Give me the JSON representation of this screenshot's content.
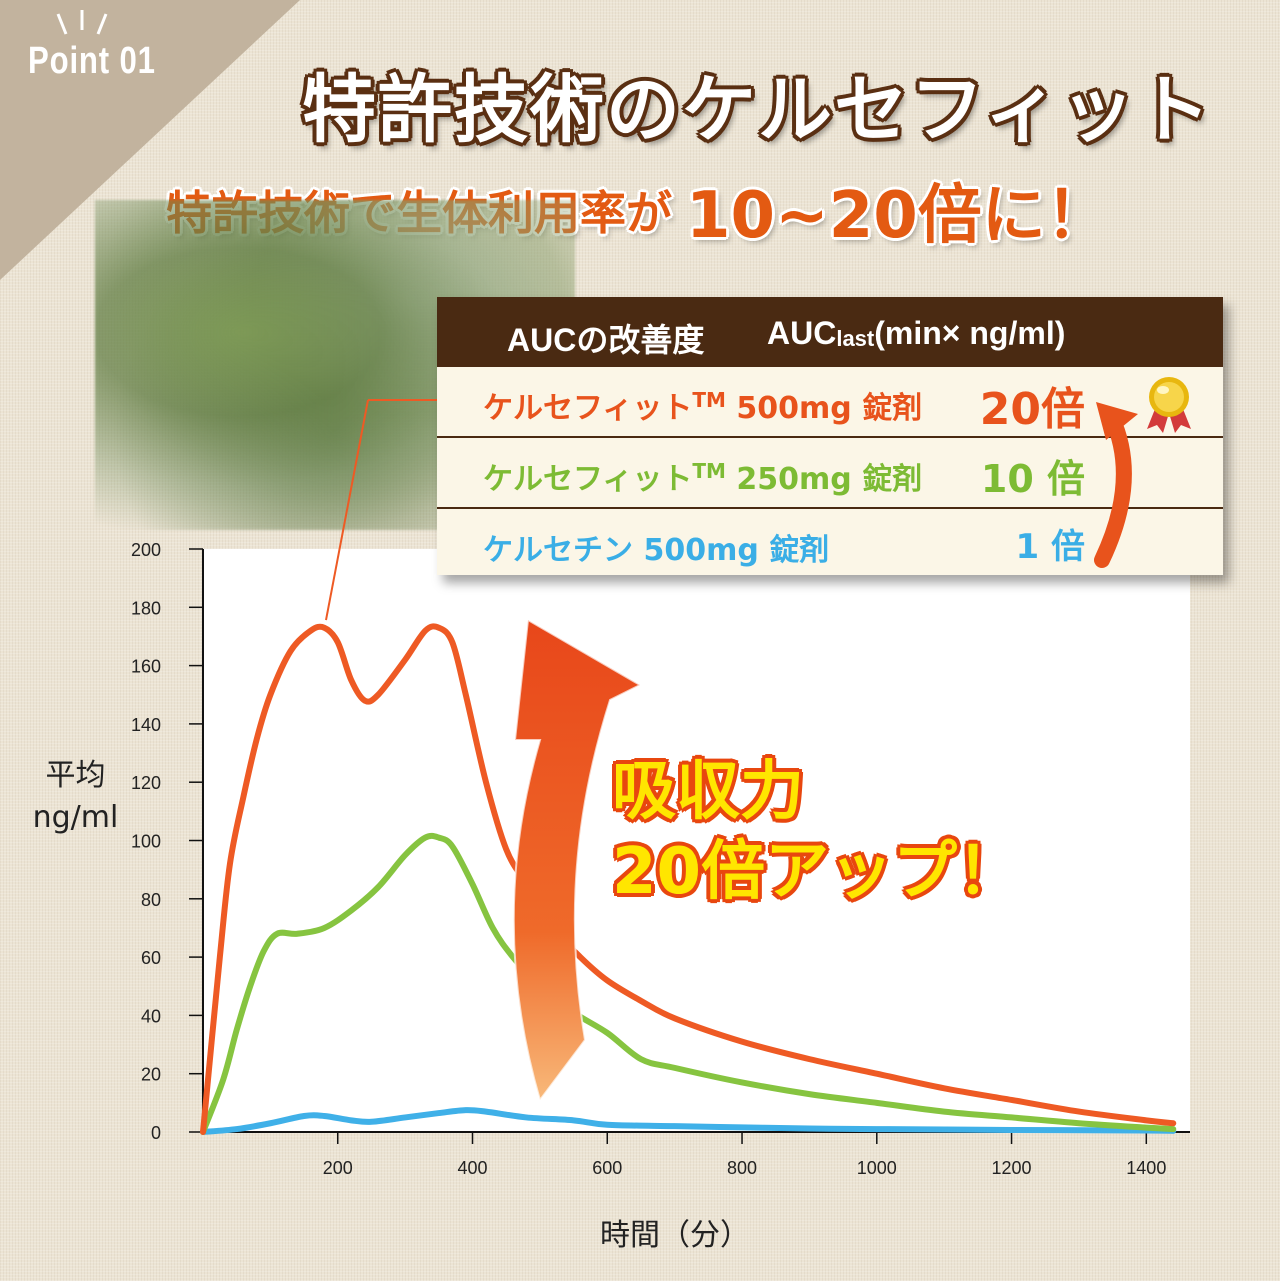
{
  "badge": {
    "point_label": "Point 01"
  },
  "title": "特許技術のケルセフィット",
  "subtitle": {
    "text": "特許技術で生体利用率が",
    "emphasis": "10~20倍に！"
  },
  "table": {
    "header": {
      "col1": "AUCの改善度",
      "col2_main": "AUC",
      "col2_sub": "last",
      "col2_rest": "(min× ng/ml)"
    },
    "rows": [
      {
        "name": "ケルセフィット",
        "tm": "TM",
        "rest": " 500mg 錠剤",
        "value": "20倍",
        "color": "#e8531c"
      },
      {
        "name": "ケルセフィット",
        "tm": "TM",
        "rest": " 250mg 錠剤",
        "value": "10 倍",
        "color": "#7dbb34"
      },
      {
        "name": "ケルセチン",
        "tm": "",
        "rest": " 500mg 錠剤",
        "value": "1 倍",
        "color": "#3aaee6"
      }
    ],
    "medal_icon": "gold-medal-icon"
  },
  "callout": {
    "line1": "吸収力",
    "line2": "20倍アップ！"
  },
  "chart_data": {
    "type": "line",
    "xlabel": "時間（分）",
    "ylabel_line1": "平均",
    "ylabel_line2": "ng/ml",
    "xlim": [
      0,
      1450
    ],
    "ylim": [
      0,
      200
    ],
    "xticks": [
      200,
      400,
      600,
      800,
      1000,
      1200,
      1400
    ],
    "yticks": [
      0,
      20,
      40,
      60,
      80,
      100,
      120,
      140,
      160,
      180,
      200
    ],
    "series": [
      {
        "color": "#ee5a24",
        "x": [
          0,
          25,
          40,
          60,
          80,
          100,
          130,
          160,
          180,
          200,
          220,
          240,
          260,
          300,
          330,
          350,
          370,
          390,
          420,
          450,
          480,
          520,
          560,
          600,
          650,
          700,
          800,
          900,
          1000,
          1100,
          1200,
          1300,
          1400,
          1440
        ],
        "y": [
          0,
          60,
          92,
          115,
          135,
          150,
          165,
          172,
          173,
          168,
          155,
          148,
          150,
          162,
          172,
          173,
          168,
          150,
          120,
          97,
          85,
          70,
          60,
          52,
          45,
          39,
          31,
          25,
          20,
          15,
          11,
          7,
          4,
          3
        ]
      },
      {
        "color": "#86c440",
        "x": [
          0,
          30,
          50,
          70,
          90,
          110,
          140,
          180,
          220,
          260,
          300,
          330,
          350,
          370,
          400,
          430,
          460,
          500,
          550,
          600,
          650,
          700,
          800,
          900,
          1000,
          1100,
          1200,
          1300,
          1400,
          1440
        ],
        "y": [
          0,
          18,
          35,
          50,
          62,
          68,
          68,
          70,
          76,
          84,
          95,
          101,
          101,
          98,
          85,
          70,
          60,
          50,
          41,
          34,
          25,
          22,
          17,
          13,
          10,
          7,
          5,
          3,
          1.5,
          1
        ]
      },
      {
        "color": "#3fb0e8",
        "x": [
          0,
          50,
          100,
          150,
          180,
          220,
          250,
          300,
          350,
          390,
          420,
          480,
          550,
          600,
          700,
          800,
          900,
          1000,
          1200,
          1400,
          1440
        ],
        "y": [
          0,
          1,
          3,
          5.5,
          5.5,
          4,
          3.5,
          5,
          6.5,
          7.5,
          7,
          5,
          4,
          2.5,
          2,
          1.6,
          1.2,
          1,
          0.7,
          0.5,
          0.4
        ]
      }
    ]
  }
}
